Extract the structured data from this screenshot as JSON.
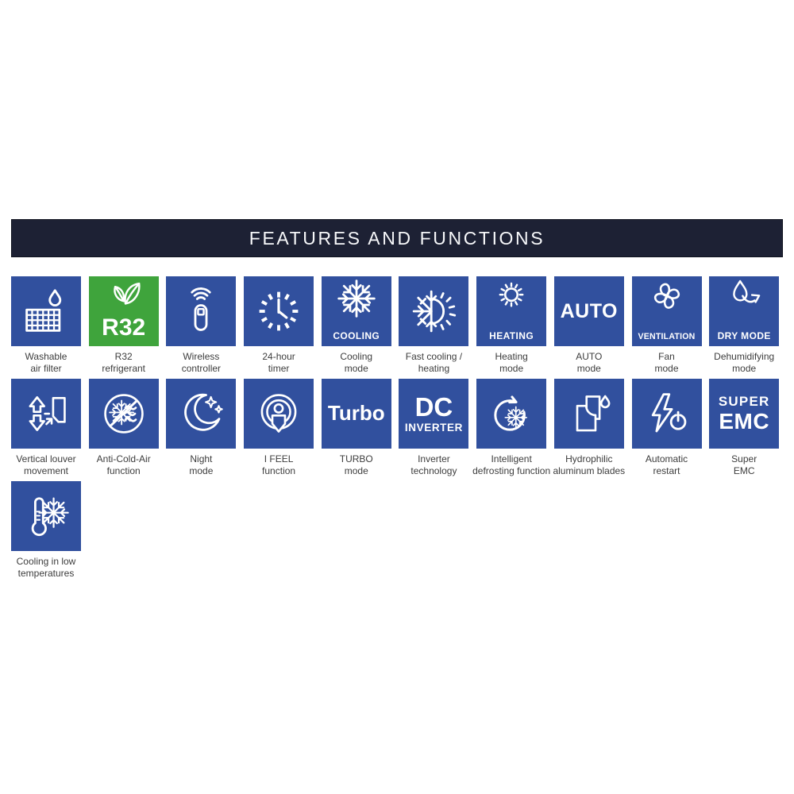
{
  "header": {
    "title": "FEATURES AND FUNCTIONS"
  },
  "colors": {
    "header_bg": "#1d2134",
    "tile_blue": "#31509e",
    "tile_green": "#3fa43c",
    "caption_text": "#3d3d3d",
    "icon_stroke": "#ffffff"
  },
  "tiles": [
    {
      "name": "washable-air-filter",
      "color": "blue",
      "icon": "filter-drop-icon",
      "caption_line1": "Washable",
      "caption_line2": "air filter"
    },
    {
      "name": "r32-refrigerant",
      "color": "green",
      "icon": "leaves-icon",
      "big_lines": [
        "R32"
      ],
      "caption_line1": "R32",
      "caption_line2": "refrigerant"
    },
    {
      "name": "wireless-controller",
      "color": "blue",
      "icon": "remote-control-icon",
      "caption_line1": "Wireless",
      "caption_line2": "controller"
    },
    {
      "name": "24-hour-timer",
      "color": "blue",
      "icon": "clock-icon",
      "caption_line1": "24-hour",
      "caption_line2": "timer"
    },
    {
      "name": "cooling-mode",
      "color": "blue",
      "icon": "snowflake-icon",
      "icon_label": "COOLING",
      "caption_line1": "Cooling",
      "caption_line2": "mode"
    },
    {
      "name": "fast-cooling-heating",
      "color": "blue",
      "icon": "snow-sun-icon",
      "caption_line1": "Fast cooling /",
      "caption_line2": "heating"
    },
    {
      "name": "heating-mode",
      "color": "blue",
      "icon": "sun-icon",
      "icon_label": "HEATING",
      "caption_line1": "Heating",
      "caption_line2": "mode"
    },
    {
      "name": "auto-mode",
      "color": "blue",
      "big_lines": [
        "AUTO"
      ],
      "caption_line1": "AUTO",
      "caption_line2": "mode"
    },
    {
      "name": "fan-mode",
      "color": "blue",
      "icon": "fan-icon",
      "icon_label": "VENTILATION",
      "caption_line1": "Fan",
      "caption_line2": "mode"
    },
    {
      "name": "dry-mode",
      "color": "blue",
      "icon": "drop-arrow-icon",
      "icon_label": "DRY MODE",
      "caption_line1": "Dehumidifying",
      "caption_line2": "mode"
    },
    {
      "name": "vertical-louver",
      "color": "blue",
      "icon": "louver-arrows-icon",
      "caption_line1": "Vertical louver",
      "caption_line2": "movement"
    },
    {
      "name": "anti-cold-air",
      "color": "blue",
      "icon": "no-cold-air-icon",
      "caption_line1": "Anti-Cold-Air",
      "caption_line2": "function"
    },
    {
      "name": "night-mode",
      "color": "blue",
      "icon": "moon-stars-icon",
      "caption_line1": "Night",
      "caption_line2": "mode"
    },
    {
      "name": "i-feel",
      "color": "blue",
      "icon": "i-feel-person-icon",
      "caption_line1": "I FEEL",
      "caption_line2": "function"
    },
    {
      "name": "turbo-mode",
      "color": "blue",
      "big_lines": [
        "Turbo"
      ],
      "caption_line1": "TURBO",
      "caption_line2": "mode"
    },
    {
      "name": "dc-inverter",
      "color": "blue",
      "big_lines": [
        "DC",
        "INVERTER"
      ],
      "caption_line1": "Inverter",
      "caption_line2": "technology"
    },
    {
      "name": "defrost",
      "color": "blue",
      "icon": "defrost-arrow-icon",
      "caption_line1": "Intelligent",
      "caption_line2": "defrosting function"
    },
    {
      "name": "aluminum-blades",
      "color": "blue",
      "icon": "blades-drop-icon",
      "caption_line1": "Hydrophilic",
      "caption_line2": "aluminum blades"
    },
    {
      "name": "auto-restart",
      "color": "blue",
      "icon": "bolt-power-icon",
      "caption_line1": "Automatic",
      "caption_line2": "restart"
    },
    {
      "name": "super-emc",
      "color": "blue",
      "big_lines": [
        "SUPER",
        "EMC"
      ],
      "caption_line1": "Super",
      "caption_line2": "EMC"
    },
    {
      "name": "low-temp-cooling",
      "color": "blue",
      "icon": "thermometer-snowflake-icon",
      "caption_line1": "Cooling in low",
      "caption_line2": "temperatures"
    }
  ]
}
